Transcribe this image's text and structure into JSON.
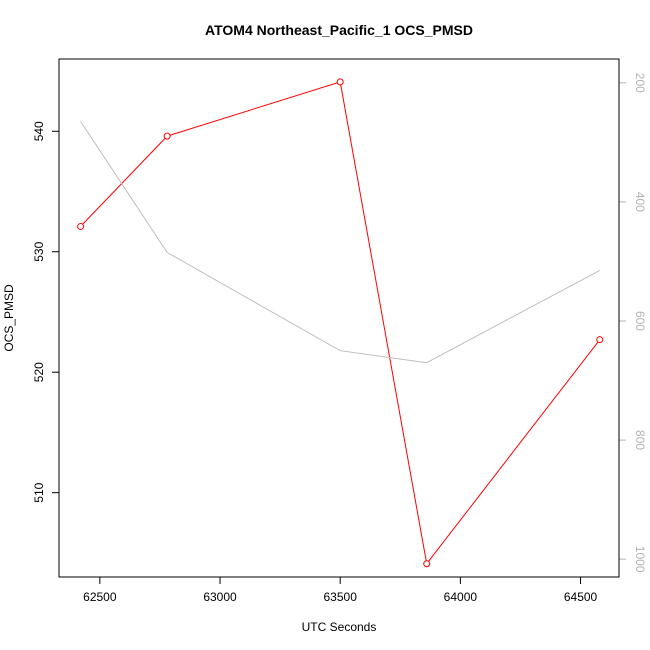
{
  "chart_data": {
    "type": "line",
    "title": "ATOM4 Northeast_Pacific_1 OCS_PMSD",
    "xlabel": "UTC Seconds",
    "ylabel": "OCS_PMSD",
    "y2label": "",
    "xlim": [
      62330,
      64660
    ],
    "ylim": [
      503,
      546
    ],
    "y2lim": [
      1030,
      160
    ],
    "x_ticks": [
      62500,
      63000,
      63500,
      64000,
      64500
    ],
    "y_ticks": [
      510,
      520,
      530,
      540
    ],
    "y2_ticks": [
      200,
      400,
      600,
      800,
      1000
    ],
    "grid": false,
    "legend": "none",
    "series": [
      {
        "axis": "left",
        "color": "#ff0000",
        "markers": "open-circle",
        "x": [
          62420,
          62780,
          63500,
          63860,
          64580
        ],
        "y": [
          532.1,
          539.6,
          544.1,
          504.1,
          522.7
        ]
      },
      {
        "axis": "right",
        "color": "#bebebe",
        "markers": "none",
        "x": [
          62420,
          62780,
          63500,
          63860,
          64580
        ],
        "y": [
          265,
          485,
          650,
          670,
          515
        ]
      }
    ]
  }
}
